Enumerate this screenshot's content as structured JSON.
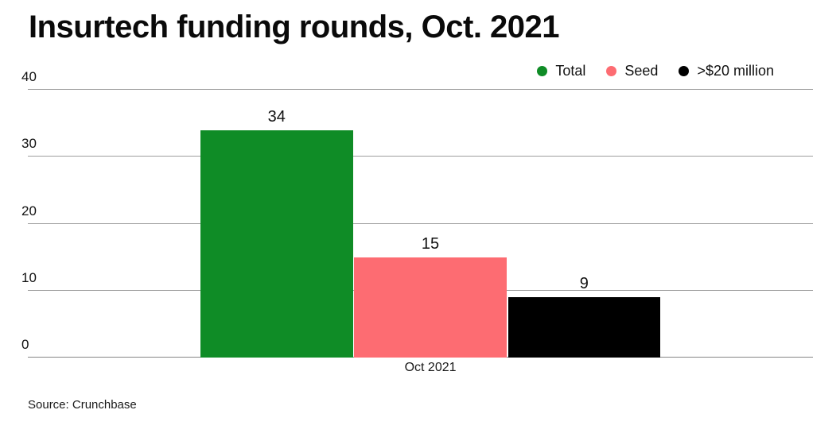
{
  "title": "Insurtech funding rounds, Oct. 2021",
  "source": "Source: Crunchbase",
  "chart_data": {
    "type": "bar",
    "title": "Insurtech funding rounds, Oct. 2021",
    "categories": [
      "Oct 2021"
    ],
    "series": [
      {
        "name": "Total",
        "values": [
          34
        ],
        "color": "#0f8c26"
      },
      {
        "name": "Seed",
        "values": [
          15
        ],
        "color": "#fd6c72"
      },
      {
        "name": ">$20 million",
        "values": [
          9
        ],
        "color": "#000000"
      }
    ],
    "ylim": [
      0,
      40
    ],
    "yticks": [
      0,
      10,
      20,
      30,
      40
    ],
    "grid": true,
    "legend_position": "top-right",
    "source": "Source: Crunchbase"
  }
}
